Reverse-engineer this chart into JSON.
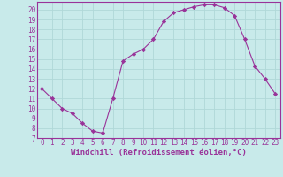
{
  "x": [
    0,
    1,
    2,
    3,
    4,
    5,
    6,
    7,
    8,
    9,
    10,
    11,
    12,
    13,
    14,
    15,
    16,
    17,
    18,
    19,
    20,
    21,
    22,
    23
  ],
  "y": [
    12,
    11,
    10,
    9.5,
    8.5,
    7.7,
    7.5,
    11,
    14.8,
    15.5,
    16,
    17,
    18.8,
    19.7,
    20,
    20.3,
    20.5,
    20.5,
    20.2,
    19.4,
    17,
    14.3,
    13,
    11.5
  ],
  "line_color": "#993399",
  "marker": "D",
  "marker_size": 2.2,
  "bg_color": "#c8eaea",
  "grid_color": "#b0d8d8",
  "xlabel": "Windchill (Refroidissement éolien,°C)",
  "xlabel_color": "#993399",
  "tick_color": "#993399",
  "ylim": [
    7,
    20.8
  ],
  "xlim": [
    -0.5,
    23.5
  ],
  "yticks": [
    7,
    8,
    9,
    10,
    11,
    12,
    13,
    14,
    15,
    16,
    17,
    18,
    19,
    20
  ],
  "xticks": [
    0,
    1,
    2,
    3,
    4,
    5,
    6,
    7,
    8,
    9,
    10,
    11,
    12,
    13,
    14,
    15,
    16,
    17,
    18,
    19,
    20,
    21,
    22,
    23
  ],
  "tick_fontsize": 5.5,
  "xlabel_fontsize": 6.5
}
